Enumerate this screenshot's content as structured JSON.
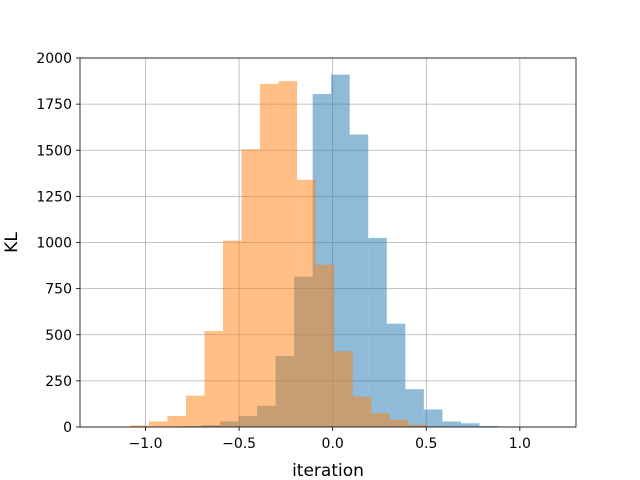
{
  "chart_data": {
    "type": "bar",
    "subtype": "overlapping-histogram",
    "title": "",
    "xlabel": "iteration",
    "ylabel": "KL",
    "xlim": [
      -1.35,
      1.3
    ],
    "ylim": [
      0,
      2000
    ],
    "xticks": [
      -1.0,
      -0.5,
      0.0,
      0.5,
      1.0
    ],
    "xtick_labels": [
      "−1.0",
      "−0.5",
      "0.0",
      "0.5",
      "1.0"
    ],
    "yticks": [
      0,
      250,
      500,
      750,
      1000,
      1250,
      1500,
      1750,
      2000
    ],
    "ytick_labels": [
      "0",
      "250",
      "500",
      "750",
      "1000",
      "1250",
      "1500",
      "1750",
      "2000"
    ],
    "grid": true,
    "legend": "none",
    "series": [
      {
        "color": "#1f77b4",
        "opacity": 0.5,
        "bin_width": 0.099,
        "bins": [
          {
            "x0": -0.8,
            "x1": -0.701,
            "value": 5
          },
          {
            "x0": -0.701,
            "x1": -0.602,
            "value": 10
          },
          {
            "x0": -0.602,
            "x1": -0.503,
            "value": 30
          },
          {
            "x0": -0.503,
            "x1": -0.404,
            "value": 60
          },
          {
            "x0": -0.404,
            "x1": -0.305,
            "value": 115
          },
          {
            "x0": -0.305,
            "x1": -0.206,
            "value": 385
          },
          {
            "x0": -0.206,
            "x1": -0.107,
            "value": 815
          },
          {
            "x0": -0.107,
            "x1": -0.008,
            "value": 1805
          },
          {
            "x0": -0.008,
            "x1": 0.091,
            "value": 1910
          },
          {
            "x0": 0.091,
            "x1": 0.19,
            "value": 1585
          },
          {
            "x0": 0.19,
            "x1": 0.289,
            "value": 1025
          },
          {
            "x0": 0.289,
            "x1": 0.388,
            "value": 560
          },
          {
            "x0": 0.388,
            "x1": 0.487,
            "value": 205
          },
          {
            "x0": 0.487,
            "x1": 0.586,
            "value": 95
          },
          {
            "x0": 0.586,
            "x1": 0.685,
            "value": 30
          },
          {
            "x0": 0.685,
            "x1": 0.784,
            "value": 20
          },
          {
            "x0": 0.784,
            "x1": 0.883,
            "value": 5
          },
          {
            "x0": 0.883,
            "x1": 0.982,
            "value": 2
          },
          {
            "x0": 0.982,
            "x1": 1.081,
            "value": 1
          },
          {
            "x0": 1.081,
            "x1": 1.18,
            "value": 1
          }
        ]
      },
      {
        "color": "#ff7f0e",
        "opacity": 0.5,
        "bin_width": 0.099,
        "bins": [
          {
            "x0": -1.18,
            "x1": -1.081,
            "value": 2
          },
          {
            "x0": -1.081,
            "x1": -0.982,
            "value": 8
          },
          {
            "x0": -0.982,
            "x1": -0.883,
            "value": 30
          },
          {
            "x0": -0.883,
            "x1": -0.784,
            "value": 60
          },
          {
            "x0": -0.784,
            "x1": -0.685,
            "value": 170
          },
          {
            "x0": -0.685,
            "x1": -0.586,
            "value": 520
          },
          {
            "x0": -0.586,
            "x1": -0.487,
            "value": 1010
          },
          {
            "x0": -0.487,
            "x1": -0.388,
            "value": 1505
          },
          {
            "x0": -0.388,
            "x1": -0.289,
            "value": 1860
          },
          {
            "x0": -0.289,
            "x1": -0.19,
            "value": 1875
          },
          {
            "x0": -0.19,
            "x1": -0.091,
            "value": 1340
          },
          {
            "x0": -0.091,
            "x1": 0.008,
            "value": 880
          },
          {
            "x0": 0.008,
            "x1": 0.107,
            "value": 410
          },
          {
            "x0": 0.107,
            "x1": 0.206,
            "value": 165
          },
          {
            "x0": 0.206,
            "x1": 0.305,
            "value": 75
          },
          {
            "x0": 0.305,
            "x1": 0.404,
            "value": 40
          },
          {
            "x0": 0.404,
            "x1": 0.503,
            "value": 12
          },
          {
            "x0": 0.503,
            "x1": 0.602,
            "value": 3
          }
        ]
      }
    ]
  }
}
